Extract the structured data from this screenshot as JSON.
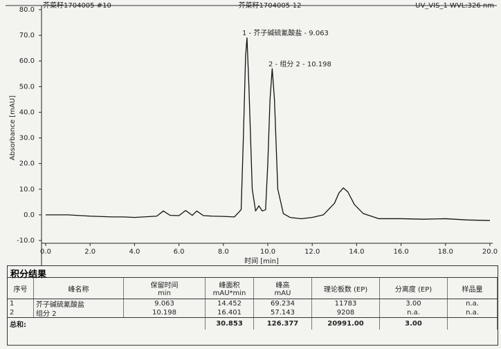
{
  "chart_data": {
    "type": "line",
    "title_left": "芥菜籽1704005 #10",
    "title": "芥菜籽1704005-12",
    "title_right": "UV_VIS_1 WVL:326 nm",
    "ylabel": "Absorbance [mAU]",
    "xlabel": "时间 [min]",
    "annotations": [
      "1 - 芥子碱硫氰酸盐 - 9.063",
      "2 - 组分 2 - 10.198"
    ],
    "color": "#111111",
    "grid": false,
    "x": [
      0,
      1,
      2,
      3,
      3.5,
      4,
      5,
      5.3,
      5.6,
      6,
      6.3,
      6.6,
      6.8,
      7.1,
      7.5,
      8,
      8.5,
      8.8,
      8.9,
      9.0,
      9.063,
      9.15,
      9.3,
      9.45,
      9.6,
      9.75,
      9.9,
      10.0,
      10.1,
      10.198,
      10.3,
      10.45,
      10.7,
      11,
      11.5,
      12,
      12.5,
      13,
      13.2,
      13.4,
      13.6,
      13.9,
      14.3,
      15,
      16,
      17,
      18,
      19,
      20
    ],
    "values": [
      0,
      0,
      -0.5,
      -0.8,
      -0.8,
      -1,
      -0.5,
      1.5,
      -0.2,
      -0.3,
      1.7,
      -0.2,
      1.5,
      -0.3,
      -0.5,
      -0.6,
      -0.8,
      2,
      30,
      62,
      69,
      50,
      10,
      1.5,
      3.5,
      1.5,
      2,
      20,
      45,
      57,
      45,
      10,
      0.5,
      -1,
      -1.5,
      -1,
      0,
      4.5,
      8.5,
      10.5,
      9,
      4,
      0.5,
      -1.5,
      -1.5,
      -1.7,
      -1.5,
      -2,
      -2.2
    ],
    "xlim": [
      0,
      20
    ],
    "xticks": [
      {
        "value": 0,
        "label": "0.0"
      },
      {
        "value": 2,
        "label": "2.0"
      },
      {
        "value": 4,
        "label": "4.0"
      },
      {
        "value": 6,
        "label": "6.0"
      },
      {
        "value": 8,
        "label": "8.0"
      },
      {
        "value": 10,
        "label": "10.0"
      },
      {
        "value": 12,
        "label": "12.0"
      },
      {
        "value": 14,
        "label": "14.0"
      },
      {
        "value": 16,
        "label": "16.0"
      },
      {
        "value": 18,
        "label": "18.0"
      },
      {
        "value": 20,
        "label": "20.0"
      }
    ],
    "ylim": [
      -10,
      80
    ],
    "yticks": [
      {
        "value": -10,
        "label": "-10.0"
      },
      {
        "value": 0,
        "label": "0.0"
      },
      {
        "value": 10,
        "label": "10.0"
      },
      {
        "value": 20,
        "label": "20.0"
      },
      {
        "value": 30,
        "label": "30.0"
      },
      {
        "value": 40,
        "label": "40.0"
      },
      {
        "value": 50,
        "label": "50.0"
      },
      {
        "value": 60,
        "label": "60.0"
      },
      {
        "value": 70,
        "label": "70.0"
      },
      {
        "value": 80,
        "label": "80.0"
      }
    ]
  },
  "table": {
    "title": "积分结果",
    "header": [
      [
        "序号"
      ],
      [
        "峰名称"
      ],
      [
        "保留时间",
        "min"
      ],
      [
        "峰面积",
        "mAU*min"
      ],
      [
        "峰高",
        "mAU"
      ],
      [
        "理论板数 (EP)"
      ],
      [
        "分离度 (EP)"
      ],
      [
        "样品量"
      ]
    ],
    "rows": [
      [
        "1",
        "芥子碱硫氰酸盐",
        "9.063",
        "14.452",
        "69.234",
        "11783",
        "3.00",
        "n.a."
      ],
      [
        "2",
        "组分 2",
        "10.198",
        "16.401",
        "57.143",
        "9208",
        "n.a.",
        "n.a."
      ]
    ],
    "total": {
      "label": "总和:",
      "area": "30.853",
      "height": "126.377",
      "plates": "20991.00",
      "resolution": "3.00"
    }
  }
}
